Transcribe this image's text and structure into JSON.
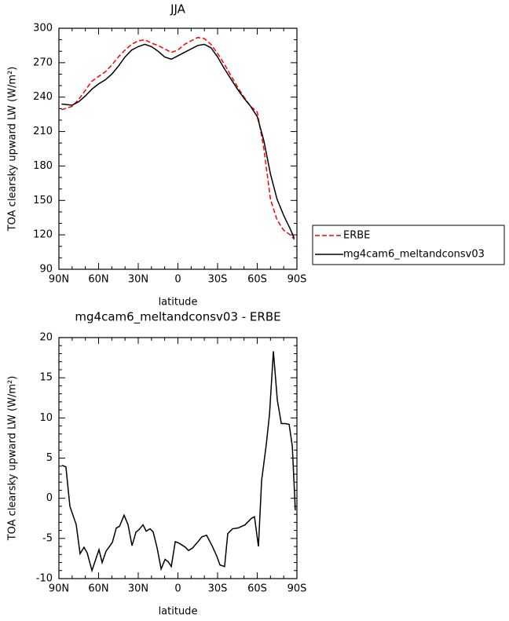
{
  "chart_data": [
    {
      "type": "line",
      "title": "JJA",
      "xlabel": "latitude",
      "ylabel": "TOA clearsky upward LW (W/m²)",
      "x": [
        88,
        80,
        75,
        70,
        65,
        60,
        55,
        50,
        45,
        40,
        35,
        30,
        25,
        20,
        15,
        10,
        5,
        0,
        -5,
        -10,
        -15,
        -20,
        -25,
        -30,
        -35,
        -40,
        -45,
        -50,
        -55,
        -60,
        -65,
        -70,
        -75,
        -80,
        -85,
        -88
      ],
      "series": [
        {
          "name": "ERBE",
          "color": "#ff0000",
          "dashed": true,
          "values": [
            229,
            232,
            238,
            246,
            254,
            258,
            262,
            268,
            275,
            281,
            286,
            289,
            290,
            287,
            285,
            282,
            279,
            281,
            286,
            289,
            292,
            291,
            286,
            278,
            269,
            259,
            249,
            240,
            232,
            227,
            195,
            151,
            133,
            124,
            120,
            116
          ]
        },
        {
          "name": "mg4cam6_meltandconsv03",
          "color": "#000000",
          "dashed": false,
          "values": [
            234,
            233,
            236,
            241,
            247,
            251.5,
            255,
            260,
            267,
            275,
            281,
            284,
            286,
            284,
            280,
            275,
            273,
            276,
            279,
            282,
            285,
            286,
            283,
            275,
            265,
            256,
            247,
            239,
            232,
            223,
            202,
            173,
            151,
            137,
            125,
            117
          ]
        }
      ],
      "xlim": [
        90,
        -90
      ],
      "xticks": [
        {
          "value": 90,
          "label": "90N"
        },
        {
          "value": 60,
          "label": "60N"
        },
        {
          "value": 30,
          "label": "30N"
        },
        0,
        {
          "value": -30,
          "label": "30S"
        },
        {
          "value": -60,
          "label": "60S"
        },
        {
          "value": -90,
          "label": "90S"
        }
      ],
      "ylim": [
        90,
        300
      ],
      "yticks": [
        90,
        120,
        150,
        180,
        210,
        240,
        270,
        300
      ],
      "legend": "right"
    },
    {
      "type": "line",
      "title": "mg4cam6_meltandconsv03 - ERBE",
      "xlabel": "latitude",
      "ylabel": "TOA clearsky upward LW (W/m²)",
      "x": [
        87.6,
        84.7,
        81.7,
        76.9,
        74.0,
        71.0,
        68.6,
        65.0,
        59.7,
        57.3,
        54.4,
        49.6,
        46.6,
        44.2,
        40.7,
        37.7,
        34.7,
        31.7,
        29.4,
        26.4,
        24.0,
        21.1,
        18.7,
        15.7,
        12.7,
        9.7,
        7.4,
        5.0,
        2.0,
        -0.9,
        -5.7,
        -8.0,
        -11.0,
        -15.2,
        -18.1,
        -21.7,
        -25.8,
        -29.4,
        -31.8,
        -35.3,
        -37.7,
        -41.3,
        -45.5,
        -50.8,
        -55.6,
        -57.9,
        -60.9,
        -63.3,
        -66.9,
        -69.3,
        -72.2,
        -75.2,
        -78.2,
        -81.1,
        -84.1,
        -86.5,
        -88.8
      ],
      "series": [
        {
          "name": "mg4cam6_meltandconsv03 - ERBE",
          "color": "#000000",
          "dashed": false,
          "values": [
            4.1,
            3.9,
            -1.0,
            -3.3,
            -6.9,
            -6.1,
            -6.8,
            -9.0,
            -6.4,
            -8.0,
            -6.6,
            -5.5,
            -3.7,
            -3.5,
            -2.1,
            -3.3,
            -5.9,
            -4.2,
            -3.9,
            -3.3,
            -4.1,
            -3.8,
            -4.2,
            -6.2,
            -8.8,
            -7.6,
            -7.9,
            -8.5,
            -5.4,
            -5.6,
            -6.1,
            -6.5,
            -6.2,
            -5.4,
            -4.8,
            -4.6,
            -5.9,
            -7.2,
            -8.3,
            -8.5,
            -4.4,
            -3.8,
            -3.7,
            -3.3,
            -2.5,
            -2.3,
            -6.0,
            2.2,
            6.8,
            10.5,
            18.3,
            12.2,
            9.3,
            9.3,
            9.2,
            6.5,
            -1.5
          ]
        }
      ],
      "xlim": [
        90,
        -90
      ],
      "xticks": [
        {
          "value": 90,
          "label": "90N"
        },
        {
          "value": 60,
          "label": "60N"
        },
        {
          "value": 30,
          "label": "30N"
        },
        0,
        {
          "value": -30,
          "label": "30S"
        },
        {
          "value": -60,
          "label": "60S"
        },
        {
          "value": -90,
          "label": "90S"
        }
      ],
      "ylim": [
        -10,
        20
      ],
      "yticks": [
        -10,
        -5,
        0,
        5,
        10,
        15,
        20
      ]
    }
  ]
}
